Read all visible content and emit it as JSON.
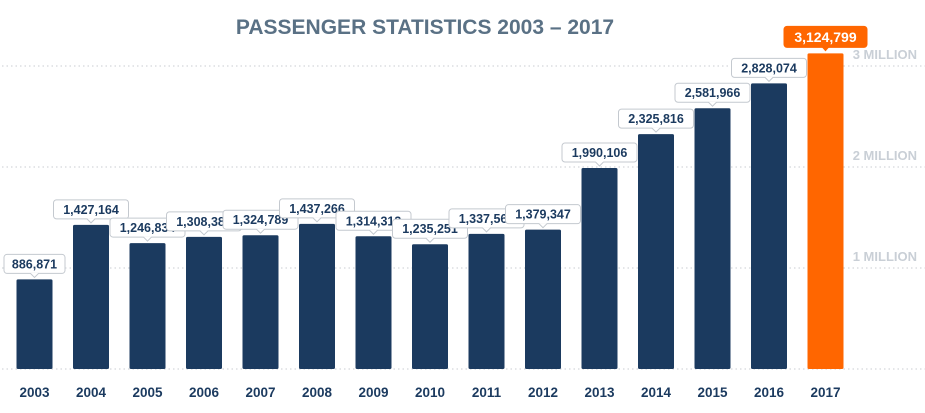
{
  "chart_data": {
    "type": "bar",
    "title": "PASSENGER STATISTICS 2003 – 2017",
    "categories": [
      "2003",
      "2004",
      "2005",
      "2006",
      "2007",
      "2008",
      "2009",
      "2010",
      "2011",
      "2012",
      "2013",
      "2014",
      "2015",
      "2016",
      "2017"
    ],
    "values": [
      886871,
      1427164,
      1246834,
      1308386,
      1324789,
      1437266,
      1314313,
      1235251,
      1337562,
      1379347,
      1990106,
      2325816,
      2581966,
      2828074,
      3124799
    ],
    "value_labels": [
      "886,871",
      "1,427,164",
      "1,246,834",
      "1,308,386",
      "1,324,789",
      "1,437,266",
      "1,314,313",
      "1,235,251",
      "1,337,562",
      "1,379,347",
      "1,990,106",
      "2,325,816",
      "2,581,966",
      "2,828,074",
      "3,124,799"
    ],
    "y_ticks": [
      {
        "value": 1000000,
        "label": "1 MILLION"
      },
      {
        "value": 2000000,
        "label": "2 MILLION"
      },
      {
        "value": 3000000,
        "label": "3 MILLION"
      }
    ],
    "ylim": [
      0,
      3000000
    ],
    "grid": true,
    "highlight_index": 14,
    "colors": {
      "bar": "#1b3a5f",
      "highlight": "#ff6600",
      "title": "#5a7185",
      "axis_label": "#c9cfd6",
      "grid": "#c9cdd2"
    }
  }
}
